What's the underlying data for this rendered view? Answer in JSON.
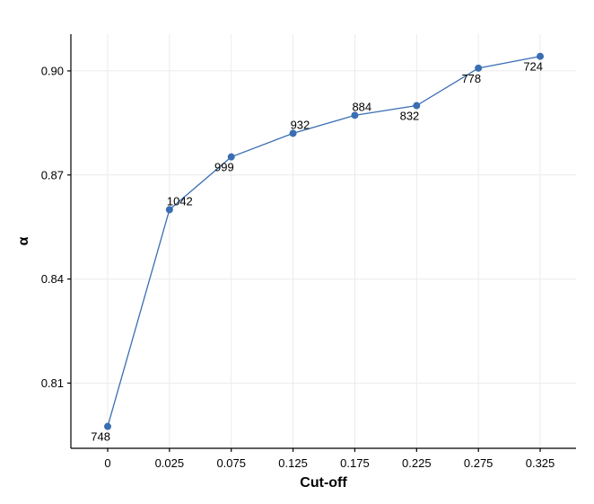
{
  "chart_data": {
    "type": "line",
    "xlabel": "Cut-off",
    "ylabel": "α",
    "x_tick_labels": [
      "0",
      "0.025",
      "0.075",
      "0.125",
      "0.175",
      "0.225",
      "0.275",
      "0.325"
    ],
    "y_ticks": [
      0.81,
      0.84,
      0.87,
      0.9
    ],
    "y_tick_labels": [
      "0.81",
      "0.84",
      "0.87",
      "0.90"
    ],
    "ylim": [
      0.7912,
      0.9106
    ],
    "grid": true,
    "legend": "none",
    "series": [
      {
        "values": [
          0.7975,
          0.86,
          0.8752,
          0.882,
          0.8872,
          0.89,
          0.9008,
          0.9042
        ],
        "point_labels": [
          "748",
          "1042",
          "999",
          "932",
          "884",
          "832",
          "778",
          "724"
        ],
        "label_positions": [
          "below-left",
          "above-right",
          "below-left",
          "above-right",
          "above-right",
          "below-left",
          "below-left",
          "below-left"
        ],
        "color": "#3a6eb3"
      }
    ]
  }
}
